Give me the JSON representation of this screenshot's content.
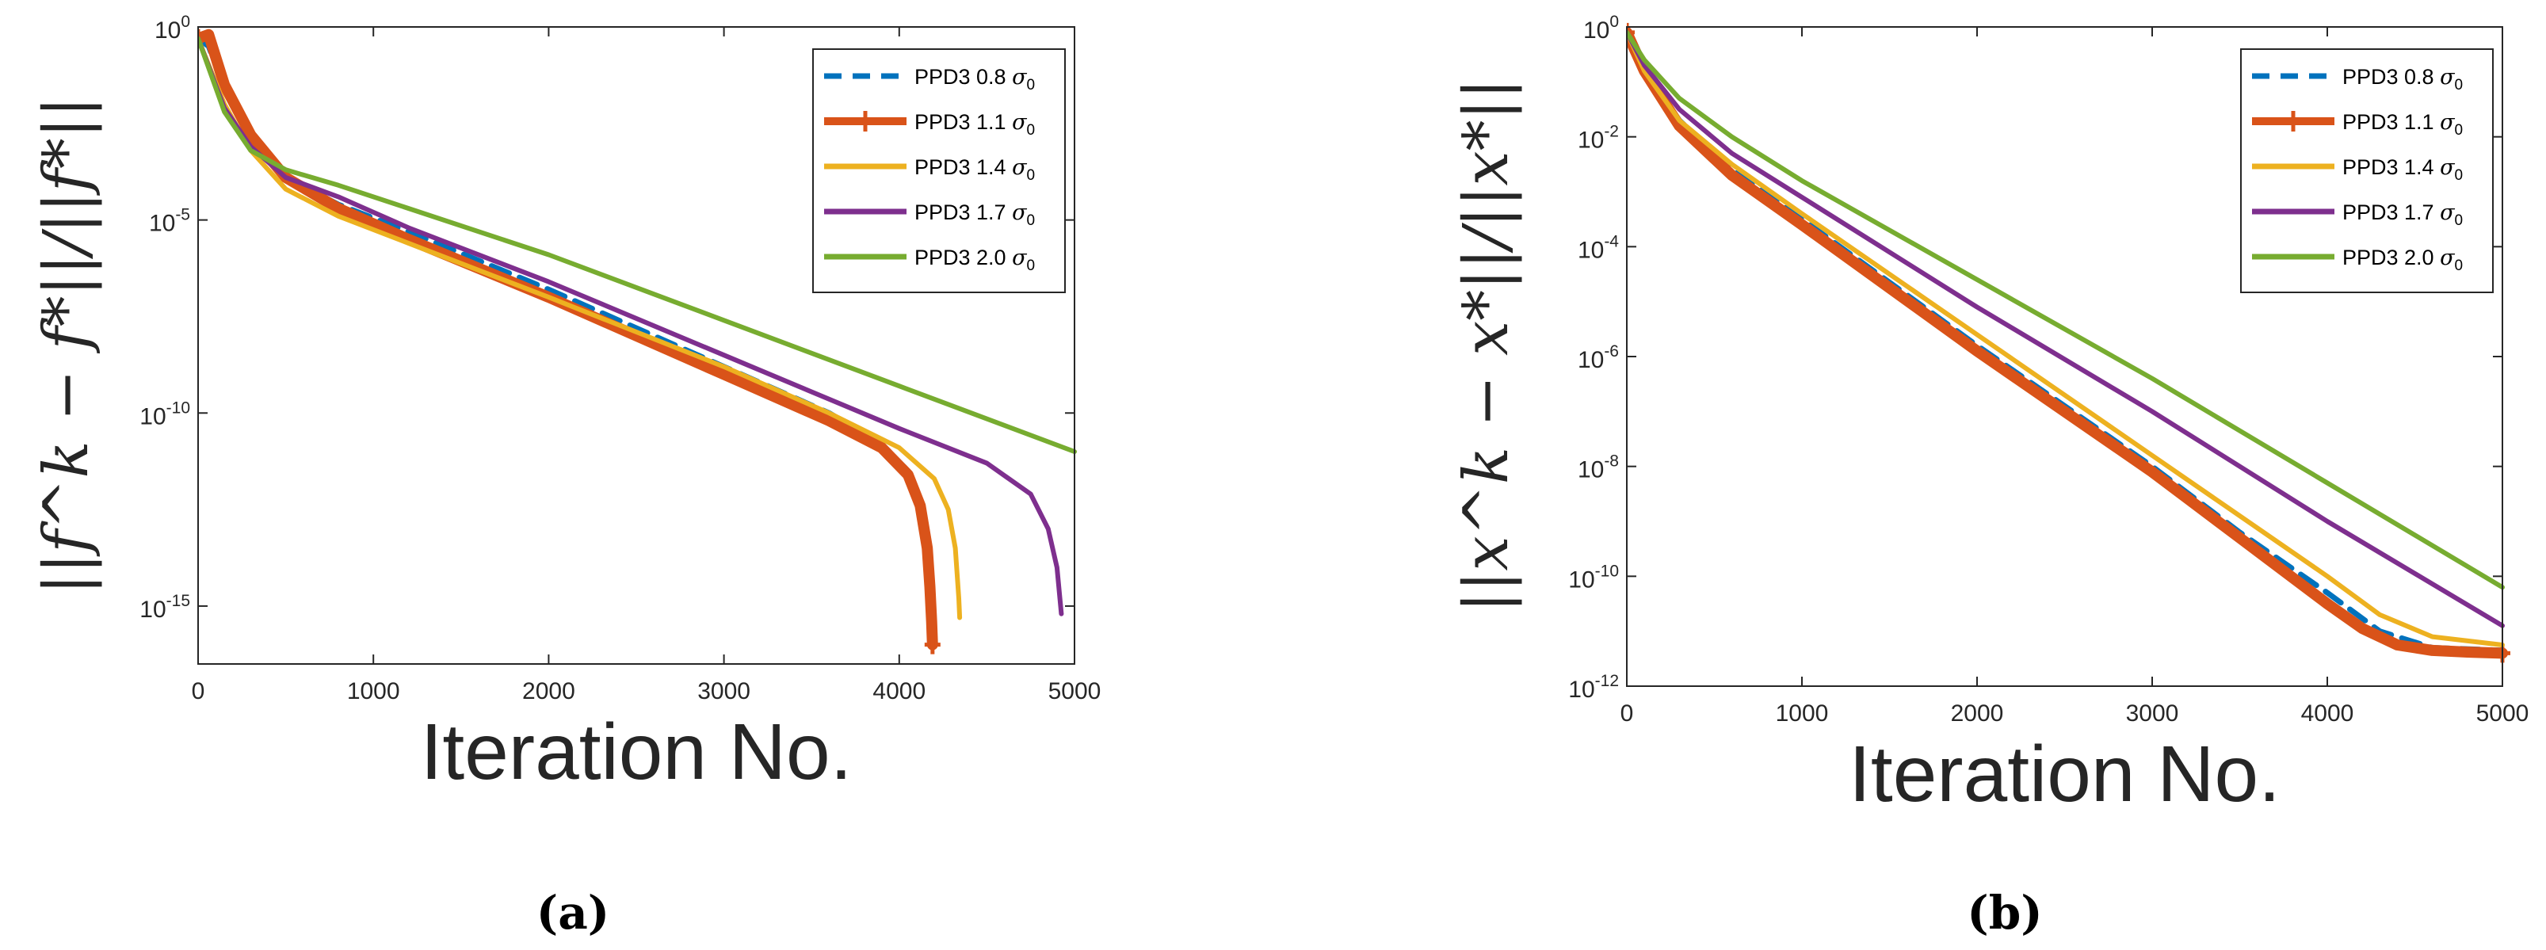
{
  "chart_data": [
    {
      "type": "line",
      "panel": "a",
      "caption": "(a)",
      "xlabel": "Iteration    No.",
      "ylabel": "||f^k − f*||/||f*||",
      "yscale": "log",
      "xlim": [
        0,
        5000
      ],
      "ylim_exp": [
        -16.5,
        0
      ],
      "xticks": [
        0,
        1000,
        2000,
        3000,
        4000,
        5000
      ],
      "yticks_exp": [
        0,
        -5,
        -10,
        -15
      ],
      "legend_position": "top-right",
      "series": [
        {
          "name": "PPD3 0.8 σ0",
          "color": "#0072BD",
          "style": "dashed",
          "x": [
            0,
            60,
            150,
            300,
            500,
            800,
            1200,
            2000,
            3000,
            3600,
            3900,
            4050,
            4120,
            4160,
            4180,
            4185
          ],
          "y_exp": [
            -0.3,
            -0.5,
            -1.6,
            -2.9,
            -3.9,
            -4.6,
            -5.3,
            -6.8,
            -8.8,
            -10.0,
            -10.8,
            -11.5,
            -12.3,
            -13.5,
            -14.8,
            -15.0
          ]
        },
        {
          "name": "PPD3 1.1 σ0",
          "color": "#D95319",
          "style": "solid-thick-markers",
          "x": [
            0,
            60,
            150,
            300,
            500,
            800,
            1200,
            2000,
            3000,
            3600,
            3900,
            4050,
            4120,
            4160,
            4175,
            4185,
            4190
          ],
          "y_exp": [
            -0.3,
            -0.2,
            -1.5,
            -2.8,
            -3.9,
            -4.7,
            -5.5,
            -7.0,
            -9.0,
            -10.2,
            -10.9,
            -11.6,
            -12.4,
            -13.5,
            -14.5,
            -15.4,
            -16.0
          ]
        },
        {
          "name": "PPD3 1.4 σ0",
          "color": "#EDB120",
          "style": "solid",
          "x": [
            0,
            150,
            300,
            500,
            800,
            1200,
            2000,
            3000,
            3600,
            4000,
            4200,
            4280,
            4320,
            4340,
            4345
          ],
          "y_exp": [
            -0.3,
            -2.0,
            -3.2,
            -4.2,
            -4.9,
            -5.6,
            -7.0,
            -8.8,
            -10.0,
            -10.9,
            -11.7,
            -12.5,
            -13.5,
            -14.8,
            -15.3
          ]
        },
        {
          "name": "PPD3 1.7 σ0",
          "color": "#7E2F8E",
          "style": "solid",
          "x": [
            0,
            150,
            300,
            500,
            800,
            1200,
            2000,
            3000,
            4000,
            4500,
            4750,
            4850,
            4900,
            4925
          ],
          "y_exp": [
            -0.3,
            -2.1,
            -3.1,
            -3.9,
            -4.4,
            -5.2,
            -6.6,
            -8.5,
            -10.4,
            -11.3,
            -12.1,
            -13.0,
            -14.0,
            -15.2
          ]
        },
        {
          "name": "PPD3 2.0 σ0",
          "color": "#77AC30",
          "style": "solid",
          "x": [
            0,
            150,
            300,
            500,
            800,
            1200,
            2000,
            3000,
            4000,
            5000
          ],
          "y_exp": [
            -0.3,
            -2.2,
            -3.2,
            -3.7,
            -4.1,
            -4.7,
            -5.9,
            -7.6,
            -9.3,
            -11.0
          ]
        }
      ]
    },
    {
      "type": "line",
      "panel": "b",
      "caption": "(b)",
      "xlabel": "Iteration    No.",
      "ylabel": "||x^k − x*||/||x*||",
      "yscale": "log",
      "xlim": [
        0,
        5000
      ],
      "ylim_exp": [
        -12,
        0
      ],
      "xticks": [
        0,
        1000,
        2000,
        3000,
        4000,
        5000
      ],
      "yticks_exp": [
        0,
        -2,
        -4,
        -6,
        -8,
        -10,
        -12
      ],
      "legend_position": "top-right",
      "series": [
        {
          "name": "PPD3 0.8 σ0",
          "color": "#0072BD",
          "style": "dashed",
          "x": [
            0,
            100,
            300,
            600,
            1000,
            2000,
            3000,
            3500,
            4000,
            4300,
            4600,
            5000
          ],
          "y_exp": [
            -0.1,
            -0.8,
            -1.7,
            -2.6,
            -3.5,
            -5.8,
            -8.0,
            -9.2,
            -10.3,
            -11.0,
            -11.3,
            -11.35
          ]
        },
        {
          "name": "PPD3 1.1 σ0",
          "color": "#D95319",
          "style": "solid-thick-markers",
          "x": [
            0,
            100,
            300,
            600,
            1000,
            2000,
            3000,
            3500,
            4000,
            4200,
            4400,
            4600,
            4800,
            5000
          ],
          "y_exp": [
            -0.1,
            -0.8,
            -1.8,
            -2.7,
            -3.6,
            -5.9,
            -8.1,
            -9.3,
            -10.5,
            -10.95,
            -11.25,
            -11.35,
            -11.38,
            -11.4
          ]
        },
        {
          "name": "PPD3 1.4 σ0",
          "color": "#EDB120",
          "style": "solid",
          "x": [
            0,
            100,
            300,
            600,
            1000,
            2000,
            3000,
            4000,
            4300,
            4600,
            5000
          ],
          "y_exp": [
            -0.1,
            -0.8,
            -1.7,
            -2.5,
            -3.4,
            -5.6,
            -7.8,
            -10.0,
            -10.7,
            -11.1,
            -11.25
          ]
        },
        {
          "name": "PPD3 1.7 σ0",
          "color": "#7E2F8E",
          "style": "solid",
          "x": [
            0,
            100,
            300,
            600,
            1000,
            2000,
            3000,
            4000,
            5000
          ],
          "y_exp": [
            -0.1,
            -0.7,
            -1.5,
            -2.3,
            -3.1,
            -5.1,
            -7.0,
            -9.0,
            -10.9
          ]
        },
        {
          "name": "PPD3 2.0 σ0",
          "color": "#77AC30",
          "style": "solid",
          "x": [
            0,
            100,
            300,
            600,
            1000,
            2000,
            3000,
            4000,
            5000
          ],
          "y_exp": [
            -0.1,
            -0.6,
            -1.3,
            -2.0,
            -2.8,
            -4.6,
            -6.4,
            -8.3,
            -10.2
          ]
        }
      ]
    }
  ]
}
